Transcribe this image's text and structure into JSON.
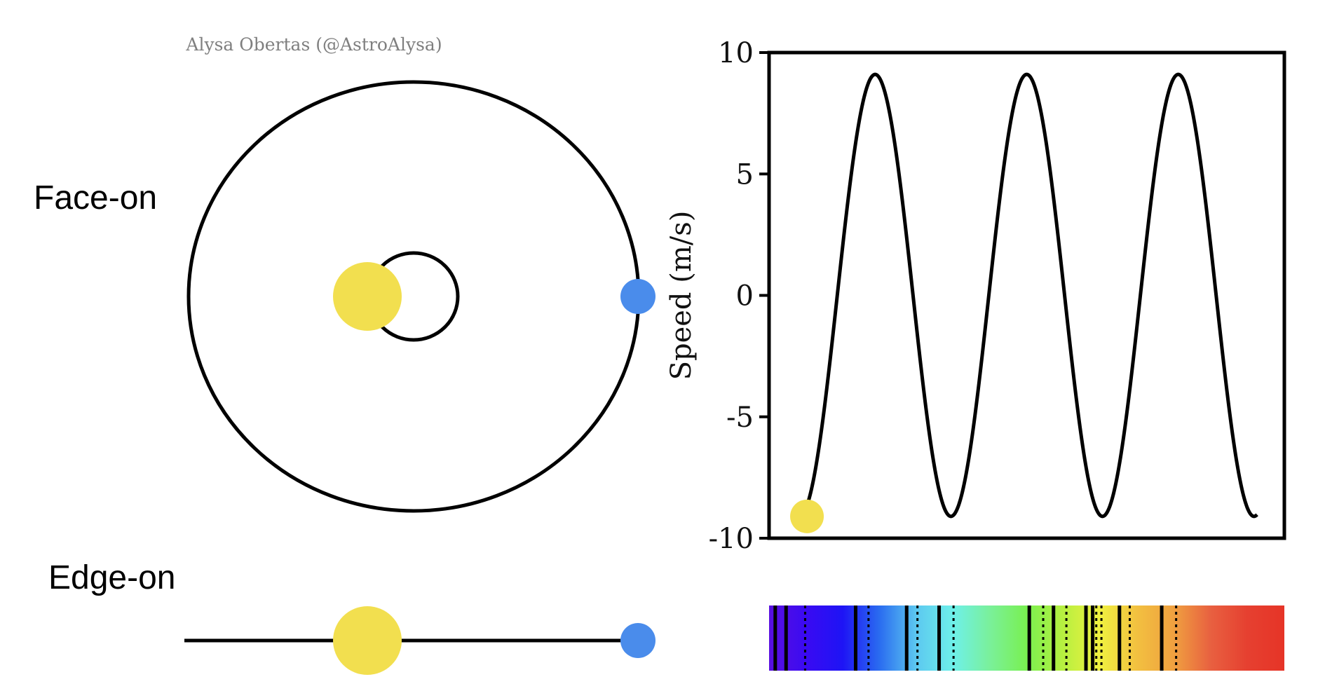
{
  "credit": "Alysa Obertas (@AstroAlysa)",
  "labels": {
    "face_on": "Face-on",
    "edge_on": "Edge-on"
  },
  "colors": {
    "star": "#F2DF4F",
    "planet": "#4A8CEB",
    "line": "#000000"
  },
  "diagram": {
    "star_orbit_state": "star at leftmost point of its small orbit",
    "planet_orbit_state": "planet at rightmost point of its large orbit"
  },
  "chart_data": {
    "type": "line",
    "title": "",
    "xlabel": "",
    "ylabel": "Speed (m/s)",
    "ylim": [
      -10,
      10
    ],
    "yticks": [
      10,
      5,
      0,
      -5,
      -10
    ],
    "ytick_labels": [
      "10",
      "5",
      "0",
      "-5",
      "-10"
    ],
    "xlim": [
      0,
      3.4
    ],
    "x_ticks_shown": false,
    "grid": false,
    "series": [
      {
        "description": "sinusoid, amplitude ~9.1 m/s, period 1 unit, starts near -9.1",
        "amplitude": 9.1,
        "period": 1.0,
        "x_start": 0.2,
        "x_end": 3.22,
        "x": [
          0.2,
          0.45,
          0.7,
          0.95,
          1.2,
          1.45,
          1.7,
          1.95,
          2.2,
          2.45,
          2.7,
          2.95,
          3.2
        ],
        "y": [
          -9.1,
          0,
          9.1,
          0,
          -9.1,
          0,
          9.1,
          0,
          -9.1,
          0,
          9.1,
          0,
          -9.1
        ]
      }
    ],
    "marker": {
      "x": 0.25,
      "y": -9.1,
      "color": "#F2DF4F"
    }
  },
  "spectrum": {
    "description": "visible spectrum band from violet to red with dark absorption lines",
    "gradient_stops": [
      "#5A10E0",
      "#3A0AF2",
      "#1E14F5",
      "#2A6CF0",
      "#5CC8F0",
      "#6EF0EA",
      "#7AF09A",
      "#79F050",
      "#B8F040",
      "#F0F040",
      "#F2C040",
      "#F0A040",
      "#E86040",
      "#E64030",
      "#E63427"
    ],
    "solid_lines": [
      0.012,
      0.033,
      0.168,
      0.267,
      0.33,
      0.505,
      0.552,
      0.615,
      0.628,
      0.68,
      0.762
    ],
    "dotted_lines": [
      0.07,
      0.193,
      0.288,
      0.358,
      0.532,
      0.577,
      0.635,
      0.645,
      0.7,
      0.79
    ]
  }
}
